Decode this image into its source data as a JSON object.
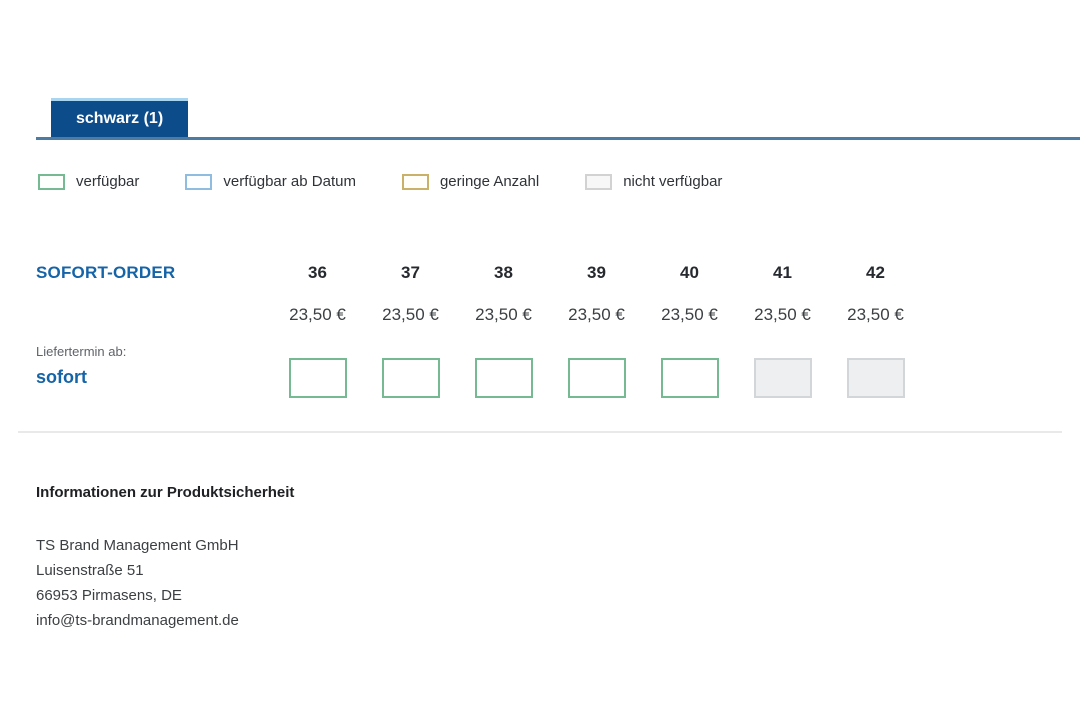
{
  "tab": {
    "label": "schwarz (1)"
  },
  "legend": {
    "items": [
      {
        "name": "available-swatch-icon",
        "label": "verfügbar",
        "border": "#76ba94",
        "fill": "#fdfffd"
      },
      {
        "name": "available-from-date-swatch-icon",
        "label": "verfügbar ab Datum",
        "border": "#8fbcdf",
        "fill": "#fcfeff"
      },
      {
        "name": "low-stock-swatch-icon",
        "label": "geringe Anzahl",
        "border": "#c9b169",
        "fill": "#fffef8"
      },
      {
        "name": "not-available-swatch-icon",
        "label": "nicht verfügbar",
        "border": "#d2d2d2",
        "fill": "#f7f7f7"
      }
    ]
  },
  "order": {
    "title": "SOFORT-ORDER",
    "delivery_label": "Liefertermin ab:",
    "delivery_value": "sofort",
    "columns": [
      {
        "size": "36",
        "price": "23,50 €",
        "status": "available",
        "quantity": ""
      },
      {
        "size": "37",
        "price": "23,50 €",
        "status": "available",
        "quantity": ""
      },
      {
        "size": "38",
        "price": "23,50 €",
        "status": "available",
        "quantity": ""
      },
      {
        "size": "39",
        "price": "23,50 €",
        "status": "available",
        "quantity": ""
      },
      {
        "size": "40",
        "price": "23,50 €",
        "status": "available",
        "quantity": ""
      },
      {
        "size": "41",
        "price": "23,50 €",
        "status": "unavailable",
        "quantity": ""
      },
      {
        "size": "42",
        "price": "23,50 €",
        "status": "unavailable",
        "quantity": ""
      }
    ]
  },
  "product_safety": {
    "title": "Informationen zur Produktsicherheit",
    "lines": [
      "TS Brand Management GmbH",
      "Luisenstraße 51",
      "66953 Pirmasens, DE",
      "info@ts-brandmanagement.de"
    ]
  },
  "colors": {
    "tab_background": "#0d4c8b",
    "tab_top_edge": "#a9d5f0",
    "tab_underline": "#4c7ca3",
    "accent_blue": "#1664a8",
    "available_border": "#76ba94",
    "unavailable_border": "#d3d6d8",
    "unavailable_fill": "#edeff0"
  }
}
